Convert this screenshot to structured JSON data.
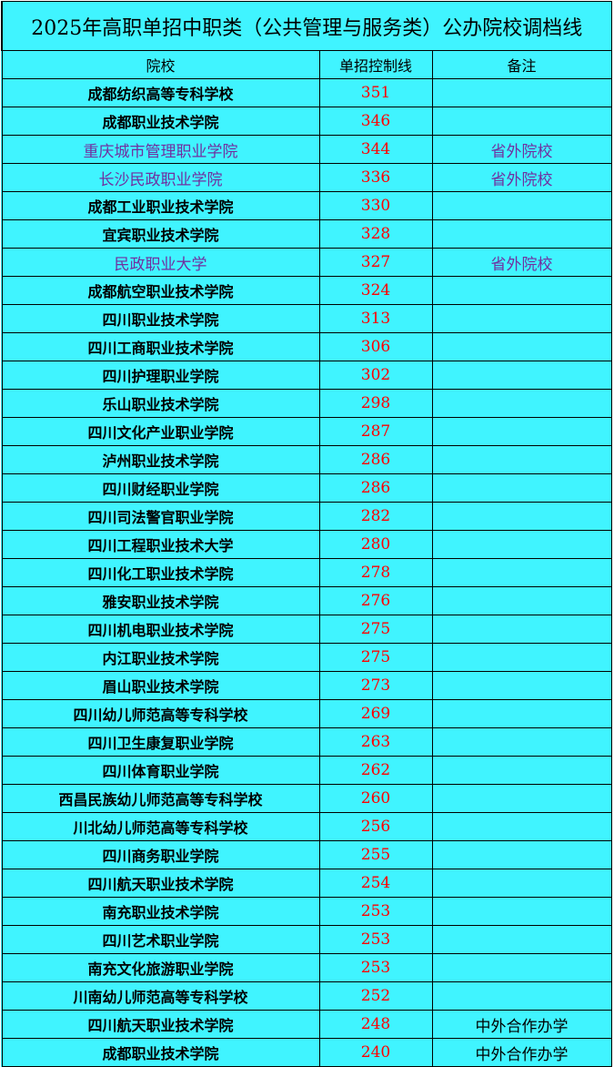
{
  "title": "2025年高职单招中职类（公共管理与服务类）公办院校调档线",
  "headers": [
    "院校",
    "单招控制线",
    "备注"
  ],
  "colors": {
    "background": "#40F4FF",
    "score": "#FF0000",
    "out_of_province": "#7030A0"
  },
  "rows": [
    {
      "name": "成都纺织高等专科学校",
      "score": "351",
      "note": ""
    },
    {
      "name": "成都职业技术学院",
      "score": "346",
      "note": ""
    },
    {
      "name": "重庆城市管理职业学院",
      "score": "344",
      "note": "省外院校"
    },
    {
      "name": "长沙民政职业学院",
      "score": "336",
      "note": "省外院校"
    },
    {
      "name": "成都工业职业技术学院",
      "score": "330",
      "note": ""
    },
    {
      "name": "宜宾职业技术学院",
      "score": "328",
      "note": ""
    },
    {
      "name": "民政职业大学",
      "score": "327",
      "note": "省外院校"
    },
    {
      "name": "成都航空职业技术学院",
      "score": "324",
      "note": ""
    },
    {
      "name": "四川职业技术学院",
      "score": "313",
      "note": ""
    },
    {
      "name": "四川工商职业技术学院",
      "score": "306",
      "note": ""
    },
    {
      "name": "四川护理职业学院",
      "score": "302",
      "note": ""
    },
    {
      "name": "乐山职业技术学院",
      "score": "298",
      "note": ""
    },
    {
      "name": "四川文化产业职业学院",
      "score": "287",
      "note": ""
    },
    {
      "name": "泸州职业技术学院",
      "score": "286",
      "note": ""
    },
    {
      "name": "四川财经职业学院",
      "score": "286",
      "note": ""
    },
    {
      "name": "四川司法警官职业学院",
      "score": "282",
      "note": ""
    },
    {
      "name": "四川工程职业技术大学",
      "score": "280",
      "note": ""
    },
    {
      "name": "四川化工职业技术学院",
      "score": "278",
      "note": ""
    },
    {
      "name": "雅安职业技术学院",
      "score": "276",
      "note": ""
    },
    {
      "name": "四川机电职业技术学院",
      "score": "275",
      "note": ""
    },
    {
      "name": "内江职业技术学院",
      "score": "275",
      "note": ""
    },
    {
      "name": "眉山职业技术学院",
      "score": "273",
      "note": ""
    },
    {
      "name": "四川幼儿师范高等专科学校",
      "score": "269",
      "note": ""
    },
    {
      "name": "四川卫生康复职业学院",
      "score": "263",
      "note": ""
    },
    {
      "name": "四川体育职业学院",
      "score": "262",
      "note": ""
    },
    {
      "name": "西昌民族幼儿师范高等专科学校",
      "score": "260",
      "note": ""
    },
    {
      "name": "川北幼儿师范高等专科学校",
      "score": "256",
      "note": ""
    },
    {
      "name": "四川商务职业学院",
      "score": "255",
      "note": ""
    },
    {
      "name": "四川航天职业技术学院",
      "score": "254",
      "note": ""
    },
    {
      "name": "南充职业技术学院",
      "score": "253",
      "note": ""
    },
    {
      "name": "四川艺术职业学院",
      "score": "253",
      "note": ""
    },
    {
      "name": "南充文化旅游职业学院",
      "score": "253",
      "note": ""
    },
    {
      "name": "川南幼儿师范高等专科学校",
      "score": "252",
      "note": ""
    },
    {
      "name": "四川航天职业技术学院",
      "score": "248",
      "note": "中外合作办学"
    },
    {
      "name": "成都职业技术学院",
      "score": "240",
      "note": "中外合作办学"
    }
  ]
}
